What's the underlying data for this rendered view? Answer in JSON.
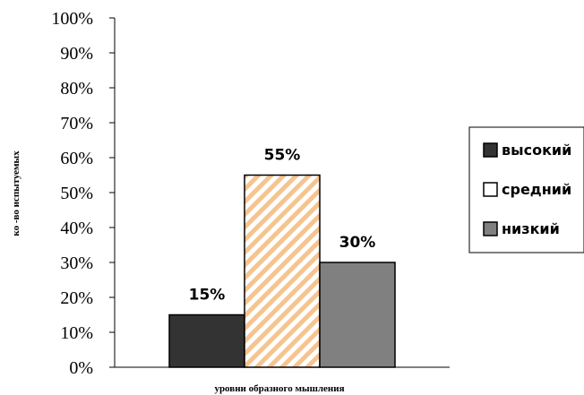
{
  "chart_data": {
    "type": "bar",
    "categories": [
      "высокий",
      "средний",
      "низкий"
    ],
    "values": [
      15,
      55,
      30
    ],
    "value_labels": [
      "15%",
      "55%",
      "30%"
    ],
    "ylim": [
      0,
      100
    ],
    "yticks": [
      0,
      10,
      20,
      30,
      40,
      50,
      60,
      70,
      80,
      90,
      100
    ],
    "ytick_labels": [
      "0%",
      "10%",
      "20%",
      "30%",
      "40%",
      "50%",
      "60%",
      "70%",
      "80%",
      "90%",
      "100%"
    ],
    "xlabel": "уровни образного мышления",
    "ylabel": "ко -во испытуемых",
    "grid": false,
    "legend_placement": "right",
    "series": [
      {
        "name": "высокий",
        "value": 15,
        "color": "#333333",
        "pattern": "solid"
      },
      {
        "name": "средний",
        "value": 55,
        "color": "#ffffff",
        "pattern": "diagonal-hatch",
        "hatch_color": "#f5c48f"
      },
      {
        "name": "низкий",
        "value": 30,
        "color": "#808080",
        "pattern": "solid"
      }
    ]
  }
}
